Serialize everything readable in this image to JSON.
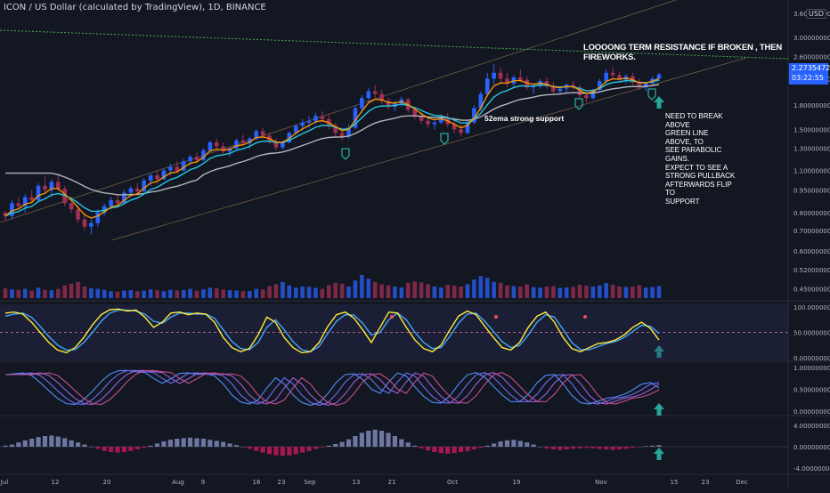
{
  "header": {
    "symbol_title": "ICON / US Dollar (calculated by TradingView), 1D, BINANCE",
    "currency_badge": "USD"
  },
  "price_tag": {
    "price": "2.27354729",
    "countdown": "03:22:55"
  },
  "annotations": {
    "resistance_note": "LOOOONG TERM RESISTANCE IF BROKEN , THEN FIREWORKS.",
    "breakout_note": "NEED TO BREAK ABOVE\nGREEN LINE ABOVE, TO\nSEE PARABOLIC GAINS.\nEXPECT TO SEE A\nSTRONG PULLBACK\nAFTERWARDS FLIP TO\nSUPPORT",
    "ema_note": "52ema strong support"
  },
  "colors": {
    "background": "#131722",
    "bull": "#2962ff",
    "bear": "#a32f54",
    "ema_fast": "#ff9800",
    "ema_mid": "#26c6da",
    "ema_slow": "#b2b5be",
    "resistance": "#4caf50",
    "channel": "#8d6e4a",
    "stoch_k": "#ffeb3b",
    "stoch_d": "#42a5f5",
    "marker": "#26a69a",
    "price_tag": "#2962ff"
  },
  "chart_data": {
    "type": "candlestick",
    "title": "ICON / US Dollar (calculated by TradingView), 1D, BINANCE",
    "x_ticks": [
      "Jul",
      "12",
      "20",
      "Aug",
      "9",
      "16",
      "23",
      "Sep",
      "13",
      "21",
      "Oct",
      "19",
      "Nov",
      "15",
      "23",
      "Dec"
    ],
    "y_ticks": [
      "3.60000000",
      "3.00000000",
      "2.60000000",
      "2.20000000",
      "1.80000000",
      "1.50000000",
      "1.30000000",
      "1.10000000",
      "0.95000000",
      "0.80000000",
      "0.70000000",
      "0.60000000",
      "0.52000000",
      "0.45000000"
    ],
    "y_scale": "log",
    "ylim": [
      0.42,
      3.6
    ],
    "last_price": 2.27354729,
    "ohlc": [
      [
        0.8,
        0.81,
        0.75,
        0.78
      ],
      [
        0.78,
        0.88,
        0.76,
        0.86
      ],
      [
        0.86,
        0.9,
        0.82,
        0.84
      ],
      [
        0.84,
        0.92,
        0.8,
        0.9
      ],
      [
        0.9,
        0.95,
        0.86,
        0.88
      ],
      [
        0.88,
        1.0,
        0.87,
        0.98
      ],
      [
        0.98,
        1.05,
        0.93,
        0.95
      ],
      [
        0.95,
        1.03,
        0.9,
        1.01
      ],
      [
        1.01,
        1.06,
        0.94,
        0.96
      ],
      [
        0.96,
        0.98,
        0.84,
        0.86
      ],
      [
        0.86,
        0.9,
        0.8,
        0.82
      ],
      [
        0.82,
        0.85,
        0.74,
        0.76
      ],
      [
        0.76,
        0.8,
        0.7,
        0.72
      ],
      [
        0.72,
        0.76,
        0.68,
        0.74
      ],
      [
        0.74,
        0.82,
        0.72,
        0.8
      ],
      [
        0.8,
        0.86,
        0.78,
        0.84
      ],
      [
        0.84,
        0.9,
        0.82,
        0.88
      ],
      [
        0.88,
        0.92,
        0.84,
        0.86
      ],
      [
        0.86,
        0.95,
        0.85,
        0.93
      ],
      [
        0.93,
        0.98,
        0.9,
        0.96
      ],
      [
        0.96,
        1.0,
        0.92,
        0.94
      ],
      [
        0.94,
        1.04,
        0.93,
        1.02
      ],
      [
        1.02,
        1.08,
        0.98,
        1.06
      ],
      [
        1.06,
        1.1,
        1.0,
        1.03
      ],
      [
        1.03,
        1.12,
        1.02,
        1.1
      ],
      [
        1.1,
        1.16,
        1.06,
        1.13
      ],
      [
        1.13,
        1.18,
        1.08,
        1.1
      ],
      [
        1.1,
        1.2,
        1.09,
        1.18
      ],
      [
        1.18,
        1.24,
        1.14,
        1.22
      ],
      [
        1.22,
        1.26,
        1.16,
        1.19
      ],
      [
        1.19,
        1.3,
        1.18,
        1.28
      ],
      [
        1.28,
        1.38,
        1.26,
        1.36
      ],
      [
        1.36,
        1.4,
        1.28,
        1.32
      ],
      [
        1.32,
        1.36,
        1.24,
        1.27
      ],
      [
        1.27,
        1.32,
        1.22,
        1.3
      ],
      [
        1.3,
        1.4,
        1.29,
        1.38
      ],
      [
        1.38,
        1.44,
        1.33,
        1.35
      ],
      [
        1.35,
        1.42,
        1.3,
        1.4
      ],
      [
        1.4,
        1.5,
        1.38,
        1.48
      ],
      [
        1.48,
        1.52,
        1.4,
        1.43
      ],
      [
        1.43,
        1.46,
        1.34,
        1.37
      ],
      [
        1.37,
        1.4,
        1.28,
        1.31
      ],
      [
        1.31,
        1.38,
        1.29,
        1.36
      ],
      [
        1.36,
        1.48,
        1.35,
        1.46
      ],
      [
        1.46,
        1.56,
        1.44,
        1.54
      ],
      [
        1.54,
        1.62,
        1.48,
        1.58
      ],
      [
        1.58,
        1.66,
        1.52,
        1.6
      ],
      [
        1.6,
        1.7,
        1.56,
        1.66
      ],
      [
        1.66,
        1.72,
        1.58,
        1.62
      ],
      [
        1.62,
        1.68,
        1.5,
        1.54
      ],
      [
        1.54,
        1.58,
        1.42,
        1.46
      ],
      [
        1.46,
        1.5,
        1.38,
        1.42
      ],
      [
        1.42,
        1.56,
        1.4,
        1.52
      ],
      [
        1.52,
        1.8,
        1.5,
        1.76
      ],
      [
        1.76,
        1.94,
        1.7,
        1.9
      ],
      [
        1.9,
        2.05,
        1.84,
        2.0
      ],
      [
        2.0,
        2.1,
        1.9,
        1.96
      ],
      [
        1.96,
        2.02,
        1.82,
        1.86
      ],
      [
        1.86,
        1.9,
        1.74,
        1.78
      ],
      [
        1.78,
        1.86,
        1.72,
        1.82
      ],
      [
        1.82,
        1.92,
        1.78,
        1.88
      ],
      [
        1.88,
        1.9,
        1.7,
        1.74
      ],
      [
        1.74,
        1.78,
        1.62,
        1.66
      ],
      [
        1.66,
        1.7,
        1.56,
        1.6
      ],
      [
        1.6,
        1.66,
        1.52,
        1.56
      ],
      [
        1.56,
        1.62,
        1.5,
        1.58
      ],
      [
        1.58,
        1.68,
        1.56,
        1.64
      ],
      [
        1.64,
        1.7,
        1.52,
        1.56
      ],
      [
        1.56,
        1.6,
        1.46,
        1.5
      ],
      [
        1.5,
        1.56,
        1.42,
        1.46
      ],
      [
        1.46,
        1.6,
        1.45,
        1.58
      ],
      [
        1.58,
        1.8,
        1.56,
        1.76
      ],
      [
        1.76,
        2.0,
        1.72,
        1.96
      ],
      [
        1.96,
        2.3,
        1.92,
        2.2
      ],
      [
        2.2,
        2.45,
        2.1,
        2.3
      ],
      [
        2.3,
        2.4,
        2.14,
        2.2
      ],
      [
        2.2,
        2.3,
        2.06,
        2.12
      ],
      [
        2.12,
        2.26,
        2.06,
        2.22
      ],
      [
        2.22,
        2.36,
        2.14,
        2.18
      ],
      [
        2.18,
        2.24,
        2.02,
        2.06
      ],
      [
        2.06,
        2.12,
        1.96,
        2.08
      ],
      [
        2.08,
        2.2,
        2.04,
        2.16
      ],
      [
        2.16,
        2.22,
        2.04,
        2.08
      ],
      [
        2.08,
        2.14,
        1.96,
        2.0
      ],
      [
        2.0,
        2.08,
        1.94,
        2.04
      ],
      [
        2.04,
        2.12,
        1.98,
        2.1
      ],
      [
        2.1,
        2.16,
        2.02,
        2.06
      ],
      [
        2.06,
        2.1,
        1.9,
        1.94
      ],
      [
        1.94,
        2.0,
        1.84,
        1.9
      ],
      [
        1.9,
        2.04,
        1.88,
        2.02
      ],
      [
        2.02,
        2.2,
        2.0,
        2.16
      ],
      [
        2.16,
        2.36,
        2.12,
        2.3
      ],
      [
        2.3,
        2.4,
        2.2,
        2.26
      ],
      [
        2.26,
        2.32,
        2.14,
        2.18
      ],
      [
        2.18,
        2.28,
        2.12,
        2.24
      ],
      [
        2.24,
        2.3,
        2.1,
        2.14
      ],
      [
        2.14,
        2.2,
        2.02,
        2.06
      ],
      [
        2.06,
        2.14,
        2.0,
        2.12
      ],
      [
        2.12,
        2.24,
        2.1,
        2.2
      ],
      [
        2.2,
        2.3,
        2.16,
        2.27
      ]
    ],
    "volume": [
      0.42,
      0.38,
      0.35,
      0.4,
      0.33,
      0.45,
      0.36,
      0.34,
      0.4,
      0.55,
      0.62,
      0.7,
      0.5,
      0.42,
      0.4,
      0.36,
      0.3,
      0.28,
      0.33,
      0.35,
      0.3,
      0.32,
      0.38,
      0.34,
      0.3,
      0.36,
      0.33,
      0.35,
      0.4,
      0.32,
      0.38,
      0.45,
      0.42,
      0.36,
      0.34,
      0.33,
      0.3,
      0.31,
      0.4,
      0.38,
      0.52,
      0.6,
      0.7,
      0.55,
      0.45,
      0.5,
      0.48,
      0.44,
      0.4,
      0.56,
      0.66,
      0.62,
      0.5,
      0.76,
      1.0,
      0.84,
      0.7,
      0.6,
      0.55,
      0.5,
      0.46,
      0.66,
      0.72,
      0.68,
      0.6,
      0.5,
      0.46,
      0.58,
      0.54,
      0.5,
      0.6,
      0.8,
      0.95,
      0.88,
      0.7,
      0.66,
      0.55,
      0.52,
      0.5,
      0.6,
      0.48,
      0.45,
      0.5,
      0.52,
      0.44,
      0.46,
      0.48,
      0.58,
      0.54,
      0.5,
      0.55,
      0.65,
      0.58,
      0.5,
      0.48,
      0.5,
      0.56,
      0.45,
      0.48,
      0.52
    ],
    "stoch_rsi": {
      "k": [
        88,
        90,
        86,
        70,
        50,
        30,
        15,
        10,
        20,
        40,
        65,
        85,
        95,
        96,
        92,
        94,
        80,
        60,
        70,
        88,
        90,
        85,
        88,
        86,
        70,
        40,
        20,
        12,
        18,
        45,
        80,
        70,
        40,
        20,
        10,
        12,
        30,
        62,
        85,
        90,
        78,
        55,
        30,
        60,
        90,
        88,
        60,
        35,
        18,
        12,
        25,
        55,
        82,
        92,
        85,
        62,
        40,
        20,
        15,
        30,
        60,
        82,
        90,
        70,
        40,
        18,
        12,
        20,
        28,
        30,
        35,
        45,
        60,
        70,
        58,
        35
      ],
      "d": [
        82,
        86,
        88,
        80,
        62,
        42,
        25,
        15,
        16,
        30,
        50,
        72,
        88,
        94,
        94,
        92,
        86,
        72,
        68,
        80,
        88,
        88,
        86,
        86,
        78,
        55,
        32,
        18,
        16,
        30,
        60,
        75,
        55,
        32,
        16,
        12,
        22,
        48,
        72,
        85,
        84,
        68,
        45,
        50,
        75,
        88,
        75,
        50,
        30,
        18,
        20,
        42,
        68,
        86,
        88,
        72,
        52,
        32,
        20,
        24,
        45,
        70,
        85,
        80,
        56,
        30,
        16,
        16,
        22,
        28,
        32,
        40,
        52,
        64,
        62,
        48
      ],
      "ylim": [
        0,
        100
      ],
      "ticks": [
        "100.00000000",
        "50.00000000",
        "0.00000000"
      ]
    },
    "oscillator_ticks": [
      "1.00000000",
      "0.50000000",
      "0.00000000"
    ],
    "histogram": {
      "ticks": [
        "4.00000000",
        "0.00000000",
        "-4.00000000"
      ],
      "values": [
        0.2,
        0.4,
        0.8,
        1.2,
        1.5,
        1.8,
        2.0,
        2.1,
        1.9,
        1.6,
        1.2,
        0.8,
        0.4,
        0.0,
        -0.4,
        -0.8,
        -1.0,
        -1.1,
        -1.0,
        -0.8,
        -0.5,
        -0.2,
        0.2,
        0.6,
        1.0,
        1.3,
        1.5,
        1.6,
        1.7,
        1.6,
        1.5,
        1.3,
        1.1,
        0.9,
        0.6,
        0.3,
        0.0,
        -0.4,
        -0.8,
        -1.1,
        -1.4,
        -1.6,
        -1.7,
        -1.6,
        -1.4,
        -1.1,
        -0.8,
        -0.4,
        -0.1,
        0.2,
        0.5,
        0.9,
        1.4,
        2.0,
        2.6,
        3.0,
        3.2,
        3.0,
        2.6,
        2.0,
        1.4,
        0.8,
        0.2,
        -0.3,
        -0.7,
        -1.0,
        -1.2,
        -1.3,
        -1.2,
        -1.0,
        -0.8,
        -0.5,
        -0.2,
        0.2,
        0.6,
        1.0,
        1.2,
        1.3,
        1.1,
        0.8,
        0.4,
        0.0,
        -0.3,
        -0.5,
        -0.6,
        -0.5,
        -0.4,
        -0.3,
        -0.2,
        -0.3,
        -0.4,
        -0.5,
        -0.6,
        -0.5,
        -0.4,
        -0.2,
        -0.1,
        0.1,
        0.2,
        0.3
      ]
    }
  }
}
